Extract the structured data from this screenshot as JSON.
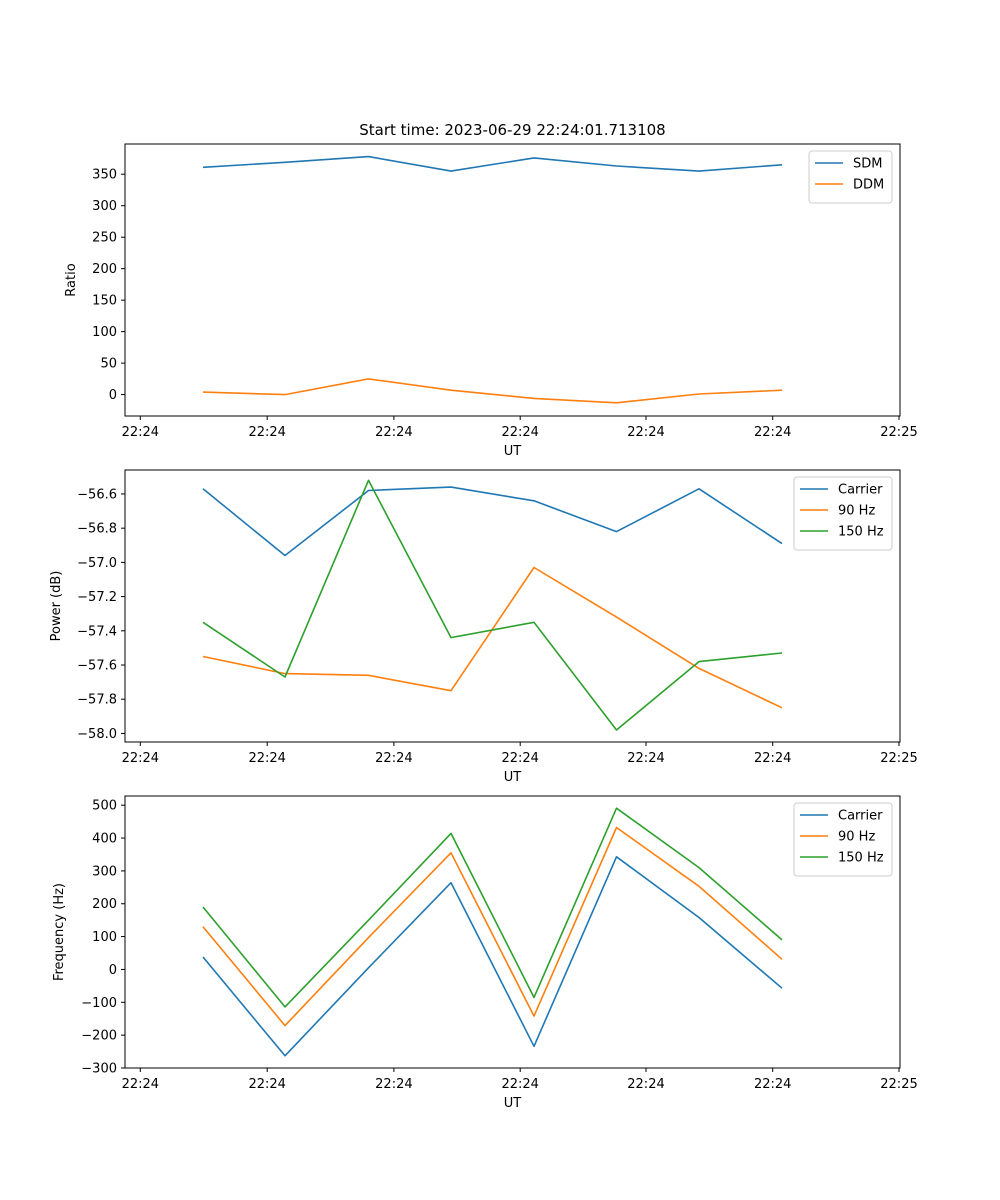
{
  "chart_data": [
    {
      "type": "line",
      "title": "Start time: 2023-06-29 22:24:01.713108",
      "xlabel": "UT",
      "ylabel": "Ratio",
      "x_tick_labels": [
        "22:24",
        "22:24",
        "22:24",
        "22:24",
        "22:24",
        "22:24",
        "22:24",
        "22:25"
      ],
      "y_ticks": [
        0,
        50,
        100,
        150,
        200,
        250,
        300,
        350
      ],
      "ylim": [
        -34,
        398
      ],
      "legend_position": "top-right",
      "series": [
        {
          "name": "SDM",
          "color": "#1f77b4",
          "values": [
            361,
            369,
            378,
            355,
            376,
            363,
            355,
            365
          ]
        },
        {
          "name": "DDM",
          "color": "#ff7f0e",
          "values": [
            4,
            0,
            25,
            7,
            -6,
            -13,
            1,
            7
          ]
        }
      ]
    },
    {
      "type": "line",
      "title": "",
      "xlabel": "UT",
      "ylabel": "Power (dB)",
      "x_tick_labels": [
        "22:24",
        "22:24",
        "22:24",
        "22:24",
        "22:24",
        "22:24",
        "22:24",
        "22:25"
      ],
      "y_ticks": [
        "−58.0",
        "−57.8",
        "−57.6",
        "−57.4",
        "−57.2",
        "−57.0",
        "−56.8",
        "−56.6"
      ],
      "y_tick_values": [
        -58.0,
        -57.8,
        -57.6,
        -57.4,
        -57.2,
        -57.0,
        -56.8,
        -56.6
      ],
      "ylim": [
        -58.05,
        -56.46
      ],
      "legend_position": "top-right",
      "series": [
        {
          "name": "Carrier",
          "color": "#1f77b4",
          "values": [
            -56.57,
            -56.96,
            -56.58,
            -56.56,
            -56.64,
            -56.82,
            -56.57,
            -56.89
          ]
        },
        {
          "name": "90 Hz",
          "color": "#ff7f0e",
          "values": [
            -57.55,
            -57.65,
            -57.66,
            -57.75,
            -57.03,
            -57.32,
            -57.62,
            -57.85
          ]
        },
        {
          "name": "150 Hz",
          "color": "#2ca02c",
          "values": [
            -57.35,
            -57.67,
            -56.52,
            -57.44,
            -57.35,
            -57.98,
            -57.58,
            -57.53
          ]
        }
      ]
    },
    {
      "type": "line",
      "title": "",
      "xlabel": "UT",
      "ylabel": "Frequency (Hz)",
      "x_tick_labels": [
        "22:24",
        "22:24",
        "22:24",
        "22:24",
        "22:24",
        "22:24",
        "22:24",
        "22:25"
      ],
      "y_ticks": [
        "−300",
        "−200",
        "−100",
        "0",
        "100",
        "200",
        "300",
        "400",
        "500"
      ],
      "y_tick_values": [
        -300,
        -200,
        -100,
        0,
        100,
        200,
        300,
        400,
        500
      ],
      "ylim": [
        -300,
        528
      ],
      "legend_position": "top-right",
      "series": [
        {
          "name": "Carrier",
          "color": "#1f77b4",
          "values": [
            38,
            -263,
            5,
            264,
            -234,
            343,
            158,
            -57
          ]
        },
        {
          "name": "90 Hz",
          "color": "#ff7f0e",
          "values": [
            130,
            -171,
            97,
            355,
            -142,
            432,
            253,
            31
          ]
        },
        {
          "name": "150 Hz",
          "color": "#2ca02c",
          "values": [
            190,
            -114,
            150,
            414,
            -85,
            491,
            310,
            90
          ]
        }
      ]
    }
  ]
}
